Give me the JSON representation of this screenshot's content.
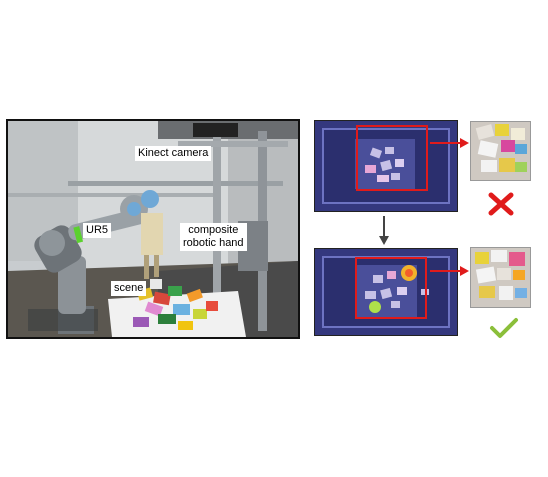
{
  "figure": {
    "labels": {
      "kinect": "Kinect camera",
      "ur5": "UR5",
      "hand_line1": "composite",
      "hand_line2": "robotic hand",
      "scene": "scene"
    },
    "colors": {
      "redbox": "#e01b1b",
      "fail_mark": "#e01b1b",
      "success_mark": "#8bbf3a",
      "arrow": "#444444",
      "depth_bg": "#3b3f86"
    },
    "icons": {
      "fail": "cross-mark-icon",
      "success": "check-mark-icon",
      "down": "arrow-down-icon",
      "right": "arrow-right-icon"
    }
  }
}
